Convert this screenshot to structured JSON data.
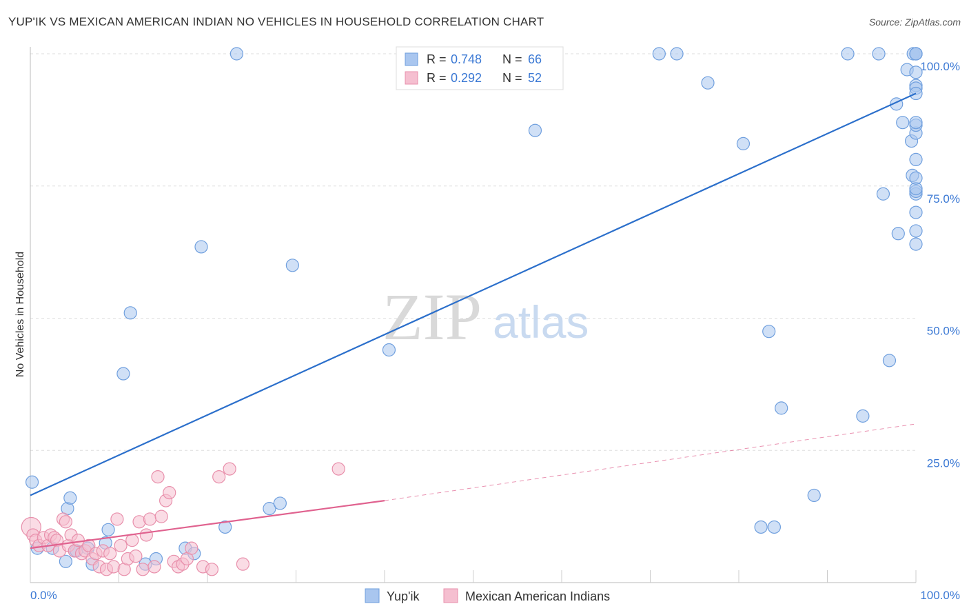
{
  "title": "YUP'IK VS MEXICAN AMERICAN INDIAN NO VEHICLES IN HOUSEHOLD CORRELATION CHART",
  "source": "Source: ZipAtlas.com",
  "watermark": {
    "zip": "ZIP",
    "atlas": "atlas"
  },
  "chart_data": {
    "type": "scatter",
    "ylabel": "No Vehicles in Household",
    "xlim": [
      0,
      100
    ],
    "ylim": [
      0,
      100
    ],
    "x_tick_labels": [
      "0.0%",
      "100.0%"
    ],
    "y_ticks": [
      25,
      50,
      75,
      100
    ],
    "y_tick_labels": [
      "25.0%",
      "50.0%",
      "75.0%",
      "100.0%"
    ],
    "grid": true,
    "legend_position": "top-center",
    "series": [
      {
        "name": "Yup'ik",
        "color": "#6f9fde",
        "fill": "#a9c6ef",
        "line_color": "#2b6fcb",
        "R": "0.748",
        "N": "66",
        "r_label": "R =",
        "n_label": "N =",
        "trend": {
          "x": [
            0,
            100
          ],
          "y": [
            16.5,
            92.5
          ],
          "style": "solid"
        },
        "points": [
          [
            0.2,
            19
          ],
          [
            0.8,
            6.5
          ],
          [
            2.5,
            6.5
          ],
          [
            4,
            4
          ],
          [
            4.2,
            14
          ],
          [
            4.5,
            16
          ],
          [
            5,
            6
          ],
          [
            5.2,
            6
          ],
          [
            6.5,
            6.5
          ],
          [
            7,
            3.5
          ],
          [
            8.5,
            7.5
          ],
          [
            8.8,
            10
          ],
          [
            10.5,
            39.5
          ],
          [
            11.3,
            51
          ],
          [
            13,
            3.5
          ],
          [
            14.2,
            4.5
          ],
          [
            17.5,
            6.5
          ],
          [
            18.5,
            5.5
          ],
          [
            19.3,
            63.5
          ],
          [
            22,
            10.5
          ],
          [
            23.3,
            100
          ],
          [
            27,
            14
          ],
          [
            28.2,
            15
          ],
          [
            29.6,
            60
          ],
          [
            40.5,
            44
          ],
          [
            57,
            85.5
          ],
          [
            71,
            100
          ],
          [
            73,
            100
          ],
          [
            76.5,
            94.5
          ],
          [
            80.5,
            83
          ],
          [
            82.5,
            10.5
          ],
          [
            83.4,
            47.5
          ],
          [
            84,
            10.5
          ],
          [
            84.8,
            33
          ],
          [
            88.5,
            16.5
          ],
          [
            92.3,
            100
          ],
          [
            94,
            31.5
          ],
          [
            95.8,
            100
          ],
          [
            96.3,
            73.5
          ],
          [
            97,
            42
          ],
          [
            97.8,
            90.5
          ],
          [
            98,
            66
          ],
          [
            98.5,
            87
          ],
          [
            99,
            97
          ],
          [
            99.5,
            83.5
          ],
          [
            99.6,
            77
          ],
          [
            99.7,
            100
          ],
          [
            100,
            100
          ],
          [
            100,
            94
          ],
          [
            100,
            64
          ],
          [
            100,
            93.5
          ],
          [
            100,
            73.5
          ],
          [
            100,
            74
          ],
          [
            100,
            100
          ],
          [
            100,
            100
          ],
          [
            100,
            85
          ],
          [
            100,
            86.5
          ],
          [
            100,
            92.5
          ],
          [
            100,
            70
          ],
          [
            100,
            66.5
          ],
          [
            100,
            96.5
          ],
          [
            100,
            80
          ],
          [
            100,
            87
          ],
          [
            100,
            74.5
          ],
          [
            100,
            100
          ],
          [
            100,
            76.5
          ]
        ]
      },
      {
        "name": "Mexican American Indians",
        "color": "#e88fab",
        "fill": "#f5bfd0",
        "line_color": "#e0628f",
        "R": "0.292",
        "N": "52",
        "r_label": "R =",
        "n_label": "N =",
        "trend": {
          "x": [
            0,
            40
          ],
          "y": [
            6.5,
            15.5
          ],
          "style": "solid",
          "extends_dashed_to": [
            100,
            30
          ]
        },
        "points": [
          [
            0.1,
            10.5
          ],
          [
            0.3,
            9
          ],
          [
            0.6,
            8
          ],
          [
            1,
            7
          ],
          [
            1.5,
            8.5
          ],
          [
            2,
            7
          ],
          [
            2.3,
            9
          ],
          [
            2.7,
            8.5
          ],
          [
            3,
            8
          ],
          [
            3.3,
            6
          ],
          [
            3.7,
            12
          ],
          [
            4,
            11.5
          ],
          [
            4.3,
            7
          ],
          [
            4.6,
            9
          ],
          [
            5,
            6
          ],
          [
            5.4,
            8
          ],
          [
            5.8,
            5.5
          ],
          [
            6.2,
            6
          ],
          [
            6.6,
            7
          ],
          [
            7,
            4.5
          ],
          [
            7.4,
            5.5
          ],
          [
            7.8,
            3
          ],
          [
            8.2,
            6
          ],
          [
            8.6,
            2.5
          ],
          [
            9,
            5.5
          ],
          [
            9.4,
            3
          ],
          [
            9.8,
            12
          ],
          [
            10.2,
            7
          ],
          [
            10.6,
            2.5
          ],
          [
            11,
            4.5
          ],
          [
            11.5,
            8
          ],
          [
            11.9,
            5
          ],
          [
            12.3,
            11.5
          ],
          [
            12.7,
            2.5
          ],
          [
            13.1,
            9
          ],
          [
            13.5,
            12
          ],
          [
            14,
            3
          ],
          [
            14.4,
            20
          ],
          [
            14.8,
            12.5
          ],
          [
            15.3,
            15.5
          ],
          [
            15.7,
            17
          ],
          [
            16.2,
            4
          ],
          [
            16.7,
            3
          ],
          [
            17.2,
            3.5
          ],
          [
            17.7,
            4.5
          ],
          [
            18.2,
            6.5
          ],
          [
            19.5,
            3
          ],
          [
            20.5,
            2.5
          ],
          [
            21.3,
            20
          ],
          [
            22.5,
            21.5
          ],
          [
            24,
            3.5
          ],
          [
            34.8,
            21.5
          ]
        ]
      }
    ]
  }
}
